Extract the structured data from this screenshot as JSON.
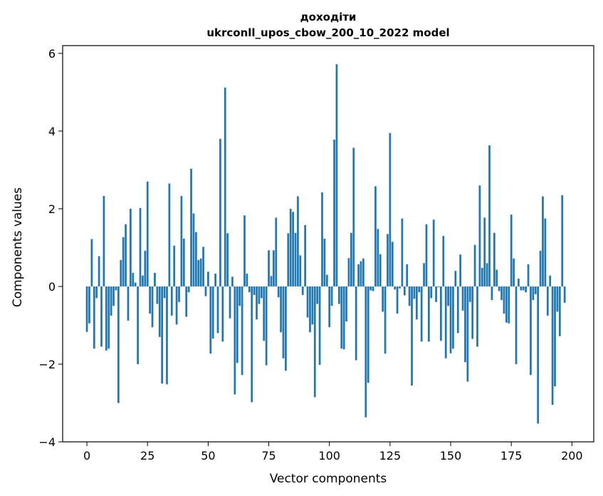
{
  "chart_data": {
    "type": "bar",
    "title_line1": "доходіти",
    "title_line2": "ukrconll_upos_cbow_200_10_2022 model",
    "xlabel": "Vector components",
    "ylabel": "Components values",
    "xlim": [
      -10,
      209
    ],
    "ylim": [
      -4,
      6.2
    ],
    "xticks": [
      0,
      25,
      50,
      75,
      100,
      125,
      150,
      175,
      200
    ],
    "yticks": [
      -4,
      -2,
      0,
      2,
      4,
      6
    ],
    "bar_color": "#1f77b4",
    "grid": false,
    "values": [
      -1.17,
      -0.95,
      1.22,
      -1.6,
      -0.3,
      0.78,
      -1.55,
      2.33,
      -1.65,
      -1.6,
      -0.75,
      -0.5,
      -0.1,
      -3.0,
      0.68,
      1.27,
      1.6,
      -0.88,
      2.0,
      0.35,
      0.1,
      -2.0,
      2.02,
      0.28,
      0.92,
      2.7,
      -0.7,
      -1.05,
      0.35,
      -0.45,
      -1.3,
      -2.5,
      -0.3,
      -2.52,
      2.65,
      -0.75,
      1.05,
      -0.98,
      -0.4,
      2.33,
      1.23,
      -0.78,
      -0.15,
      3.03,
      1.88,
      1.4,
      0.68,
      0.72,
      1.02,
      -0.25,
      0.38,
      -1.73,
      -1.34,
      0.33,
      -1.2,
      3.8,
      -1.42,
      5.12,
      1.37,
      -0.82,
      0.25,
      -2.78,
      -1.97,
      -0.5,
      -2.28,
      1.83,
      0.33,
      -0.15,
      -2.98,
      -0.22,
      -0.85,
      -0.45,
      -0.3,
      -1.4,
      -2.03,
      0.93,
      0.27,
      0.93,
      1.77,
      -0.28,
      -1.18,
      -1.85,
      -2.17,
      1.37,
      2.0,
      1.92,
      1.38,
      2.32,
      0.8,
      -0.22,
      1.58,
      -0.8,
      -1.18,
      -0.98,
      -2.85,
      -0.45,
      -2.02,
      2.42,
      1.23,
      0.3,
      -1.05,
      -0.5,
      3.78,
      5.72,
      -0.45,
      -1.6,
      -1.62,
      -0.9,
      0.73,
      1.38,
      3.57,
      -1.9,
      0.57,
      0.65,
      0.72,
      -3.37,
      -2.48,
      -0.1,
      -0.12,
      2.58,
      1.48,
      0.83,
      -0.65,
      -1.73,
      1.35,
      3.95,
      1.15,
      -0.08,
      -0.7,
      -0.05,
      1.75,
      -0.23,
      0.57,
      -0.5,
      -2.55,
      -0.32,
      -0.85,
      -0.15,
      -1.42,
      0.6,
      1.6,
      -1.42,
      -0.3,
      1.72,
      -0.4,
      -0.02,
      -1.4,
      1.3,
      -1.85,
      -0.5,
      -1.72,
      -1.6,
      0.4,
      -1.2,
      0.82,
      -0.62,
      -1.95,
      -2.45,
      -0.4,
      -1.35,
      1.07,
      -1.55,
      2.6,
      0.48,
      1.77,
      0.6,
      3.63,
      -0.35,
      1.38,
      0.43,
      -0.12,
      -0.35,
      -0.7,
      -0.93,
      -0.95,
      1.85,
      0.72,
      -2.0,
      0.2,
      -0.1,
      -0.1,
      -0.15,
      0.57,
      -2.28,
      -0.35,
      -0.2,
      -3.53,
      0.92,
      2.32,
      1.75,
      -0.75,
      0.28,
      -3.05,
      -2.57,
      -0.65,
      -1.28,
      2.35,
      -0.42
    ]
  }
}
